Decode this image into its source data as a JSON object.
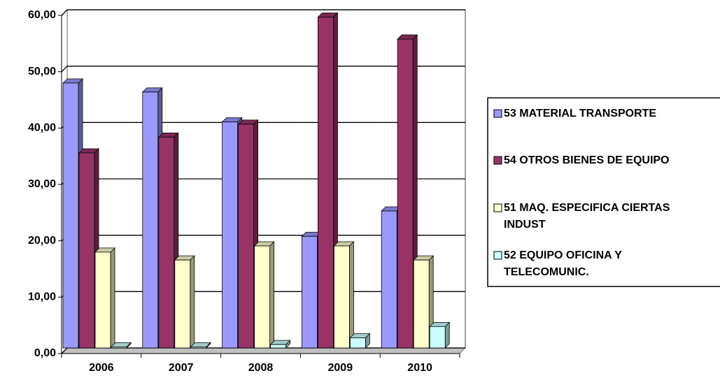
{
  "chart_data": {
    "type": "bar3d",
    "categories": [
      "2006",
      "2007",
      "2008",
      "2009",
      "2010"
    ],
    "series": [
      {
        "name": "53 MATERIAL TRANSPORTE",
        "color": "#9999ff",
        "values": [
          47.0,
          45.4,
          40.1,
          19.8,
          24.3
        ]
      },
      {
        "name": "54 OTROS BIENES DE EQUIPO",
        "color": "#993366",
        "values": [
          34.6,
          37.4,
          39.7,
          58.7,
          54.8
        ]
      },
      {
        "name": "51 MAQ. ESPECIFICA CIERTAS INDUST",
        "color": "#ffffcc",
        "values": [
          17.0,
          15.6,
          18.1,
          18.1,
          15.6
        ]
      },
      {
        "name": "52 EQUIPO OFICINA Y TELECOMUNIC.",
        "color": "#ccffff",
        "values": [
          0.2,
          0.2,
          0.6,
          1.8,
          3.8
        ]
      }
    ],
    "ylim": [
      0,
      60
    ],
    "yticks": [
      {
        "value": 0,
        "label": "0,00"
      },
      {
        "value": 10,
        "label": "10,00"
      },
      {
        "value": 20,
        "label": "20,00"
      },
      {
        "value": 30,
        "label": "30,00"
      },
      {
        "value": 40,
        "label": "40,00"
      },
      {
        "value": 50,
        "label": "50,00"
      },
      {
        "value": 60,
        "label": "60,00"
      }
    ],
    "grid": true,
    "legend": "right"
  }
}
